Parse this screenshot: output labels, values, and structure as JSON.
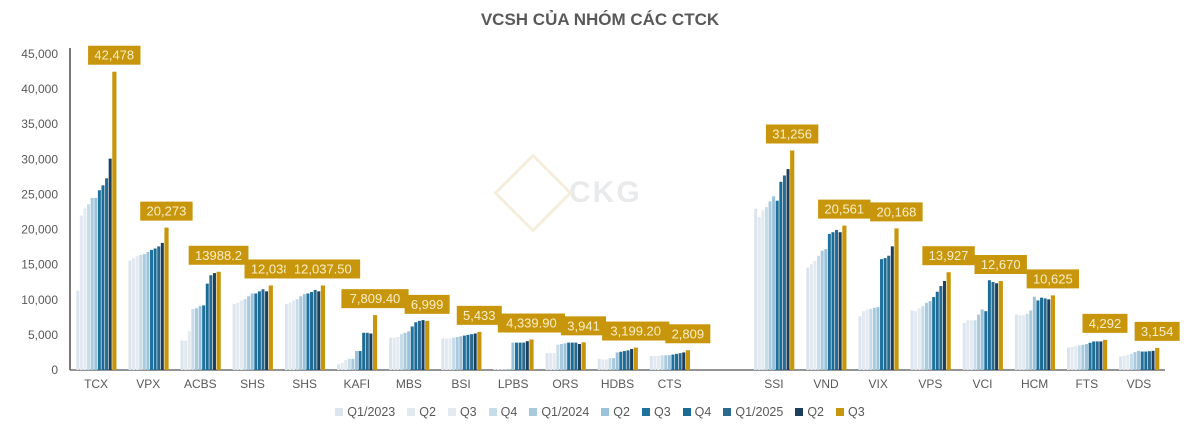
{
  "chart_data": {
    "type": "bar",
    "title": "VCSH CỦA NHÓM CÁC CTCK",
    "xlabel": "",
    "ylabel": "",
    "ylim": [
      0,
      45000
    ],
    "yticks": [
      "0",
      "5,000",
      "10,000",
      "15,000",
      "20,000",
      "25,000",
      "30,000",
      "35,000",
      "40,000",
      "45,000"
    ],
    "grid": false,
    "legend": "bottom",
    "watermark": "CKG",
    "categories": [
      "TCX",
      "VPX",
      "ACBS",
      "SHS",
      "SHS",
      "KAFI",
      "MBS",
      "BSI",
      "LPBS",
      "ORS",
      "HDBS",
      "CTS",
      "SSI",
      "VND",
      "VIX",
      "VPS",
      "VCI",
      "HCM",
      "FTS",
      "VDS"
    ],
    "data_labels": [
      "42,478",
      "20,273",
      "13988.2",
      "12,038",
      "12,037.50",
      "7,809.40",
      "6,999",
      "5,433",
      "4,339.90",
      "3,941",
      "3,199.20",
      "2,809",
      "31,256",
      "20,561",
      "20,168",
      "13,927",
      "12,670",
      "10,625",
      "4,292",
      "3,154"
    ],
    "series": [
      {
        "name": "Q1/2023",
        "color": "#dce5ee",
        "values": [
          11300,
          15600,
          4200,
          9400,
          9400,
          800,
          4600,
          4500,
          100,
          2400,
          1600,
          2000,
          22970,
          14600,
          7660,
          8470,
          6700,
          7900,
          3210,
          1920
        ]
      },
      {
        "name": "Q2",
        "color": "#e2e9f1",
        "values": [
          22000,
          15900,
          4200,
          9600,
          9600,
          1000,
          4600,
          4500,
          100,
          2400,
          1500,
          2000,
          21770,
          15070,
          8370,
          8370,
          7080,
          7800,
          3300,
          2010
        ]
      },
      {
        "name": "Q3",
        "color": "#e4eaf0",
        "values": [
          23000,
          16200,
          5500,
          9900,
          9900,
          1400,
          4700,
          4500,
          100,
          2400,
          1500,
          2000,
          22730,
          15550,
          8610,
          8760,
          7080,
          7800,
          3400,
          2150
        ]
      },
      {
        "name": "Q4",
        "color": "#c6dce9",
        "values": [
          23600,
          16400,
          8700,
          10100,
          10100,
          1600,
          5100,
          4600,
          100,
          3600,
          1700,
          2100,
          23200,
          16270,
          8710,
          9090,
          7080,
          8000,
          3500,
          2300
        ]
      },
      {
        "name": "Q1/2024",
        "color": "#a9c9dd",
        "values": [
          24500,
          16500,
          8800,
          10500,
          10500,
          1600,
          5300,
          4700,
          100,
          3700,
          1700,
          2100,
          24020,
          16990,
          8850,
          9570,
          7900,
          8480,
          3590,
          2540
        ]
      },
      {
        "name": "Q2",
        "color": "#9cc2da",
        "values": [
          24500,
          16800,
          9100,
          10900,
          10800,
          2700,
          5500,
          4800,
          3900,
          3800,
          2500,
          2100,
          24740,
          17220,
          8950,
          9810,
          8620,
          10440,
          3690,
          2730
        ]
      },
      {
        "name": "Q3",
        "color": "#1f729e",
        "values": [
          25600,
          17100,
          9200,
          10900,
          10900,
          2700,
          6200,
          4900,
          3900,
          3900,
          2600,
          2200,
          24110,
          19380,
          15790,
          10390,
          8380,
          9910,
          3880,
          2630
        ]
      },
      {
        "name": "Q4",
        "color": "#1c6b95",
        "values": [
          26300,
          17300,
          12300,
          11200,
          11100,
          5300,
          6800,
          5000,
          3900,
          3900,
          2700,
          2300,
          26800,
          19620,
          15930,
          11150,
          12780,
          10300,
          4070,
          2630
        ]
      },
      {
        "name": "Q1/2025",
        "color": "#2a6a8e",
        "values": [
          27300,
          17600,
          13500,
          11500,
          11400,
          5300,
          7000,
          5100,
          3900,
          3900,
          2800,
          2400,
          27700,
          19950,
          16270,
          11960,
          12540,
          10200,
          4070,
          2680
        ]
      },
      {
        "name": "Q2",
        "color": "#1b3f5c",
        "values": [
          30100,
          18100,
          13800,
          11200,
          11200,
          5200,
          7100,
          5200,
          4100,
          3700,
          3000,
          2500,
          28610,
          19620,
          17610,
          12680,
          12350,
          10060,
          4070,
          2730
        ]
      },
      {
        "name": "Q3",
        "color": "#c8960c",
        "values": [
          42478,
          20273,
          13988.2,
          12038,
          12037.5,
          7809.4,
          6999,
          5433,
          4339.9,
          3941,
          3199.2,
          2809,
          31256,
          20561,
          20168,
          13927,
          12670,
          10625,
          4292,
          3154
        ]
      }
    ]
  }
}
